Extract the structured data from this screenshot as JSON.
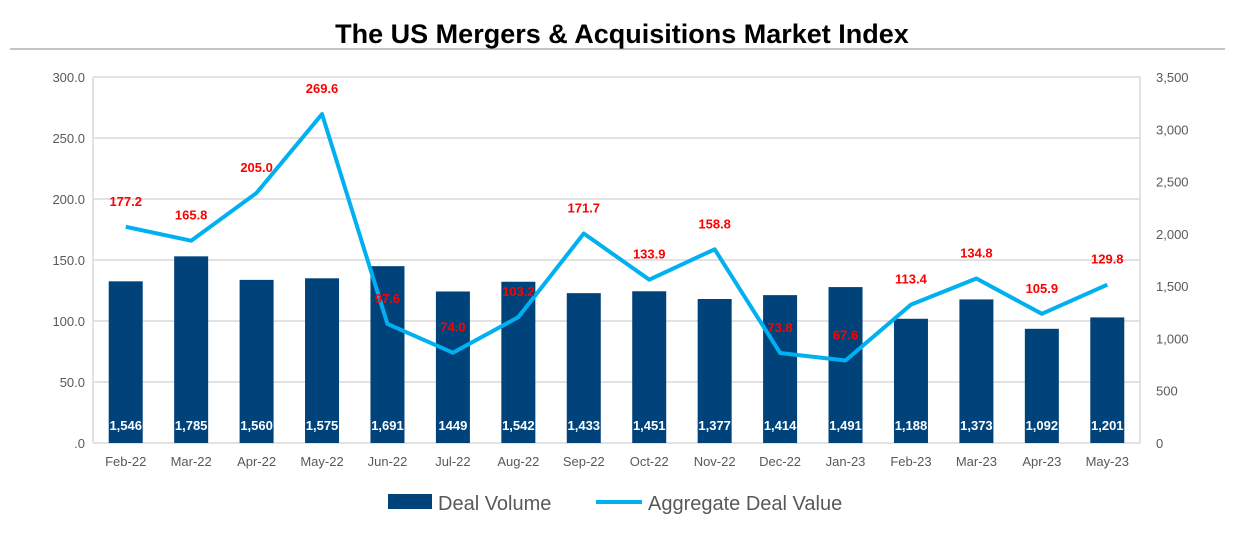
{
  "chart_data": {
    "type": "bar+line",
    "title": "The US Mergers & Acquisitions Market Index",
    "categories": [
      "Feb-22",
      "Mar-22",
      "Apr-22",
      "May-22",
      "Jun-22",
      "Jul-22",
      "Aug-22",
      "Sep-22",
      "Oct-22",
      "Nov-22",
      "Dec-22",
      "Jan-23",
      "Feb-23",
      "Mar-23",
      "Apr-23",
      "May-23"
    ],
    "series": [
      {
        "name": "Deal Volume",
        "type": "bar",
        "axis": "right",
        "color": "#00427A",
        "values": [
          1546,
          1785,
          1560,
          1575,
          1691,
          1449,
          1542,
          1433,
          1451,
          1377,
          1414,
          1491,
          1188,
          1373,
          1092,
          1201
        ],
        "labels": [
          "1,546",
          "1,785",
          "1,560",
          "1,575",
          "1,691",
          "1449",
          "1,542",
          "1,433",
          "1,451",
          "1,377",
          "1,414",
          "1,491",
          "1,188",
          "1,373",
          "1,092",
          "1,201"
        ]
      },
      {
        "name": "Aggregate Deal Value",
        "type": "line",
        "axis": "left",
        "color": "#00B0F0",
        "values": [
          177.2,
          165.8,
          205.0,
          269.6,
          97.6,
          74.0,
          103.2,
          171.7,
          133.9,
          158.8,
          73.8,
          67.6,
          113.4,
          134.8,
          105.9,
          129.8
        ],
        "labels": [
          "177.2",
          "165.8",
          "205.0",
          "269.6",
          "97.6",
          "74.0",
          "103.2",
          "171.7",
          "133.9",
          "158.8",
          "73.8",
          "67.6",
          "113.4",
          "134.8",
          "105.9",
          "129.8"
        ]
      }
    ],
    "left_axis": {
      "ylim": [
        0,
        300
      ],
      "ticks": [
        ".0",
        "50.0",
        "100.0",
        "150.0",
        "200.0",
        "250.0",
        "300.0"
      ]
    },
    "right_axis": {
      "ylim": [
        0,
        3500
      ],
      "ticks": [
        "0",
        "500",
        "1,000",
        "1,500",
        "2,000",
        "2,500",
        "3,000",
        "3,500"
      ]
    },
    "grid": true,
    "legend": "bottom",
    "label_color": "#FF0000"
  }
}
